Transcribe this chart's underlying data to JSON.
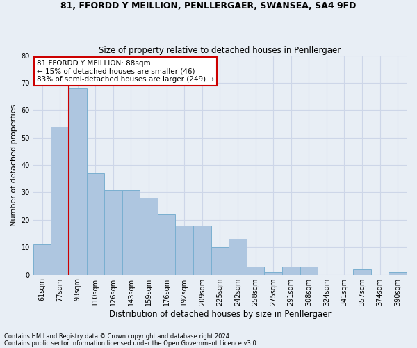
{
  "title1": "81, FFORDD Y MEILLION, PENLLERGAER, SWANSEA, SA4 9FD",
  "title2": "Size of property relative to detached houses in Penllergaer",
  "xlabel": "Distribution of detached houses by size in Penllergaer",
  "ylabel": "Number of detached properties",
  "categories": [
    "61sqm",
    "77sqm",
    "93sqm",
    "110sqm",
    "126sqm",
    "143sqm",
    "159sqm",
    "176sqm",
    "192sqm",
    "209sqm",
    "225sqm",
    "242sqm",
    "258sqm",
    "275sqm",
    "291sqm",
    "308sqm",
    "324sqm",
    "341sqm",
    "357sqm",
    "374sqm",
    "390sqm"
  ],
  "values": [
    11,
    54,
    68,
    37,
    31,
    31,
    28,
    22,
    18,
    18,
    10,
    13,
    3,
    1,
    3,
    3,
    0,
    0,
    2,
    0,
    1
  ],
  "bar_color": "#aec6e0",
  "bar_edge_color": "#7aafd0",
  "property_line_color": "#cc0000",
  "property_line_x": 1.5,
  "annotation_line1": "81 FFORDD Y MEILLION: 88sqm",
  "annotation_line2": "← 15% of detached houses are smaller (46)",
  "annotation_line3": "83% of semi-detached houses are larger (249) →",
  "annotation_box_color": "#ffffff",
  "annotation_box_edge_color": "#cc0000",
  "ylim": [
    0,
    80
  ],
  "yticks": [
    0,
    10,
    20,
    30,
    40,
    50,
    60,
    70,
    80
  ],
  "grid_color": "#cdd6e8",
  "background_color": "#e8eef5",
  "footnote1": "Contains HM Land Registry data © Crown copyright and database right 2024.",
  "footnote2": "Contains public sector information licensed under the Open Government Licence v3.0."
}
